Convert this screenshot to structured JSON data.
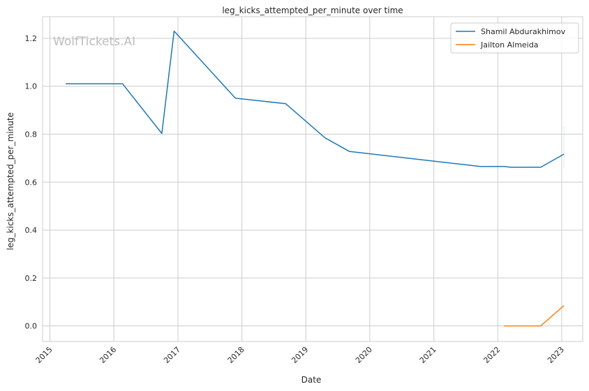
{
  "chart_data": {
    "type": "line",
    "title": "leg_kicks_attempted_per_minute over time",
    "xlabel": "Date",
    "ylabel": "leg_kicks_attempted_per_minute",
    "watermark": "WolfTickets.AI",
    "x_ticks": [
      "2015",
      "2016",
      "2017",
      "2018",
      "2019",
      "2020",
      "2021",
      "2022",
      "2023"
    ],
    "y_ticks": [
      "0.0",
      "0.2",
      "0.4",
      "0.6",
      "0.8",
      "1.0",
      "1.2"
    ],
    "xlim": [
      "2014-11-20",
      "2023-05-01"
    ],
    "ylim": [
      -0.065,
      1.29
    ],
    "grid": true,
    "legend_position": "top-right",
    "series": [
      {
        "name": "Shamil Abdurakhimov",
        "color": "#1f77b4",
        "points": [
          {
            "date": "2015-04-01",
            "y": 1.01
          },
          {
            "date": "2016-02-20",
            "y": 1.01
          },
          {
            "date": "2016-10-01",
            "y": 0.803
          },
          {
            "date": "2016-12-10",
            "y": 1.23
          },
          {
            "date": "2017-11-25",
            "y": 0.95
          },
          {
            "date": "2018-09-08",
            "y": 0.927
          },
          {
            "date": "2019-04-20",
            "y": 0.785
          },
          {
            "date": "2019-09-07",
            "y": 0.728
          },
          {
            "date": "2021-09-25",
            "y": 0.665
          },
          {
            "date": "2022-02-05",
            "y": 0.665
          },
          {
            "date": "2022-03-19",
            "y": 0.662
          },
          {
            "date": "2022-09-03",
            "y": 0.662
          },
          {
            "date": "2023-01-14",
            "y": 0.717
          }
        ]
      },
      {
        "name": "Jailton Almeida",
        "color": "#ff7f0e",
        "points": [
          {
            "date": "2022-02-05",
            "y": 0.0
          },
          {
            "date": "2022-09-03",
            "y": 0.0
          },
          {
            "date": "2023-01-14",
            "y": 0.085
          }
        ]
      }
    ]
  }
}
